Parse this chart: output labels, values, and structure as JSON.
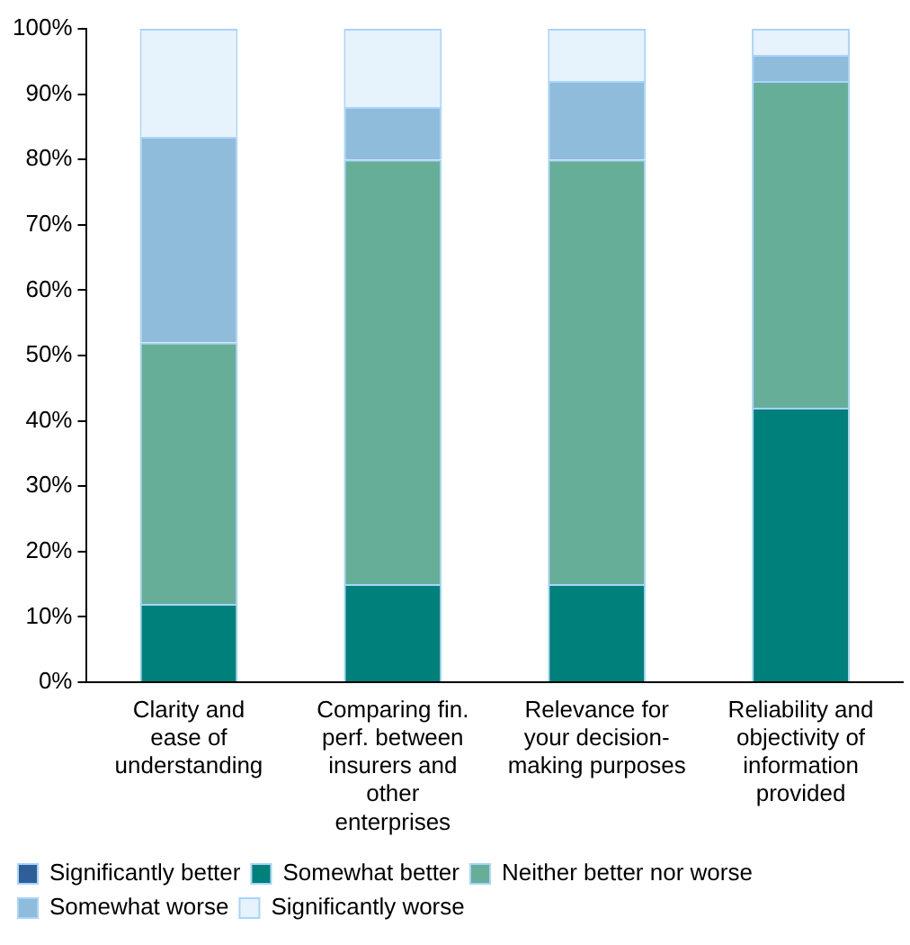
{
  "chart_data": {
    "type": "bar",
    "stacked": true,
    "categories": [
      "Clarity and ease of understanding",
      "Comparing fin. perf. between insurers and other enterprises",
      "Relevance for your decision-making purposes",
      "Reliability and objectivity of information provided"
    ],
    "series": [
      {
        "name": "Significantly better",
        "color": "#2f5f98",
        "values": [
          0,
          0,
          0,
          0
        ]
      },
      {
        "name": "Somewhat better",
        "color": "#00807a",
        "values": [
          12,
          15,
          15,
          42
        ]
      },
      {
        "name": "Neither better nor worse",
        "color": "#66ae98",
        "values": [
          40,
          65,
          65,
          50
        ]
      },
      {
        "name": "Somewhat worse",
        "color": "#8fbcdb",
        "values": [
          31.5,
          8,
          12,
          4
        ]
      },
      {
        "name": "Significantly worse",
        "color": "#e6f2fc",
        "values": [
          16.5,
          12,
          8,
          4
        ]
      }
    ],
    "ylim": [
      0,
      100
    ],
    "yticks": [
      {
        "value": 0,
        "label": "0%"
      },
      {
        "value": 10,
        "label": "10%"
      },
      {
        "value": 20,
        "label": "20%"
      },
      {
        "value": 30,
        "label": "30%"
      },
      {
        "value": 40,
        "label": "40%"
      },
      {
        "value": 50,
        "label": "50%"
      },
      {
        "value": 60,
        "label": "60%"
      },
      {
        "value": 70,
        "label": "70%"
      },
      {
        "value": 80,
        "label": "80%"
      },
      {
        "value": 90,
        "label": "90%"
      },
      {
        "value": 100,
        "label": "100%"
      }
    ],
    "grid": false,
    "legend": "bottom"
  }
}
